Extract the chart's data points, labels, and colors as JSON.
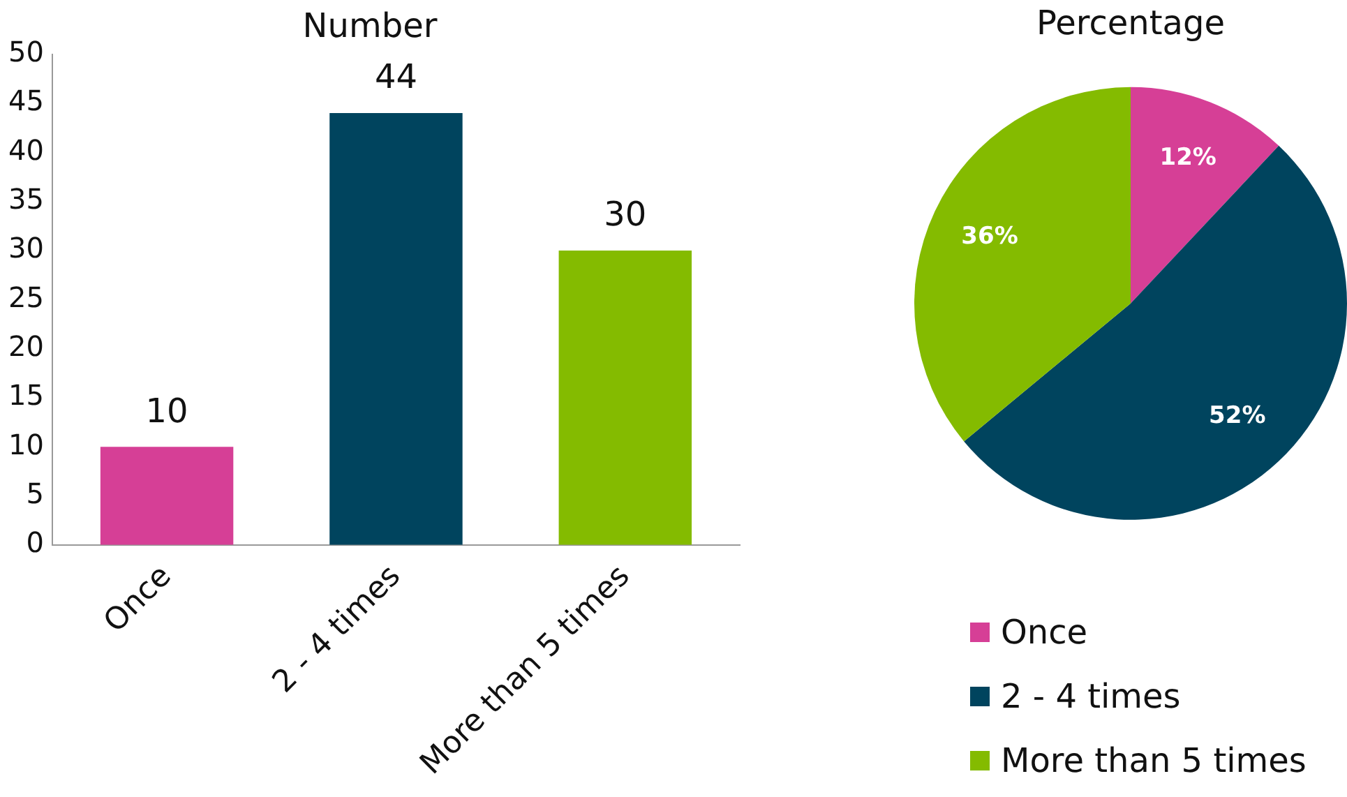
{
  "chart_data": [
    {
      "type": "bar",
      "title": "Number",
      "categories": [
        "Once",
        "2 - 4 times",
        "More than 5 times"
      ],
      "values": [
        10,
        44,
        30
      ],
      "colors": [
        "#d63f96",
        "#00445e",
        "#84bb00"
      ],
      "ylim": [
        0,
        50
      ],
      "yticks": [
        0,
        5,
        10,
        15,
        20,
        25,
        30,
        35,
        40,
        45,
        50
      ],
      "grid": false,
      "data_labels": true,
      "legend": false
    },
    {
      "type": "pie",
      "title": "Percentage",
      "categories": [
        "Once",
        "2 - 4 times",
        "More than 5 times"
      ],
      "values": [
        12,
        52,
        36
      ],
      "colors": [
        "#d63f96",
        "#00445e",
        "#84bb00"
      ],
      "value_labels": [
        "12%",
        "52%",
        "36%"
      ],
      "legend": "bottom"
    }
  ]
}
